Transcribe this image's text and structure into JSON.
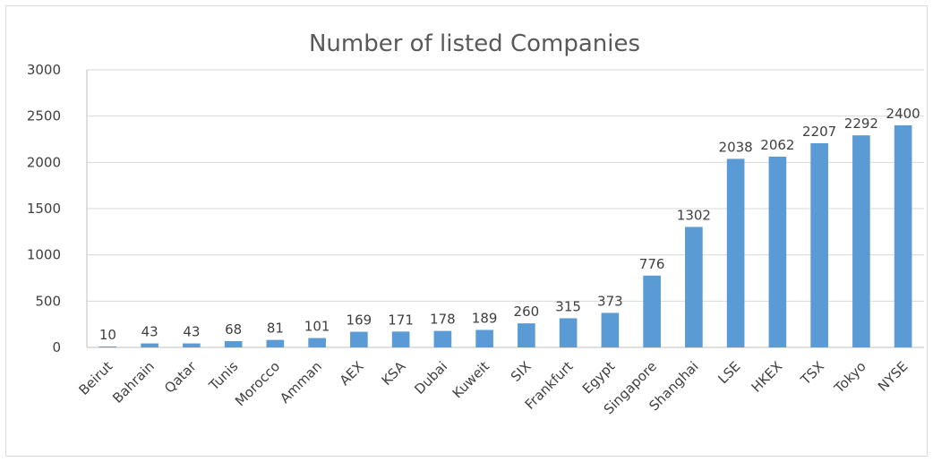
{
  "chart_data": {
    "type": "bar",
    "title": "Number of listed Companies",
    "xlabel": "",
    "ylabel": "",
    "ylim": [
      0,
      3000
    ],
    "yticks": [
      0,
      500,
      1000,
      1500,
      2000,
      2500,
      3000
    ],
    "grid": true,
    "legend": "none",
    "categories": [
      "Beirut",
      "Bahrain",
      "Qatar",
      "Tunis",
      "Morocco",
      "Amman",
      "AEX",
      "KSA",
      "Dubai",
      "Kuweit",
      "SIX",
      "Frankfurt",
      "Egypt",
      "Singapore",
      "Shanghai",
      "LSE",
      "HKEX",
      "TSX",
      "Tokyo",
      "NYSE"
    ],
    "values": [
      10,
      43,
      43,
      68,
      81,
      101,
      169,
      171,
      178,
      189,
      260,
      315,
      373,
      776,
      1302,
      2038,
      2062,
      2207,
      2292,
      2400
    ],
    "bar_color": "#5b9bd5"
  }
}
